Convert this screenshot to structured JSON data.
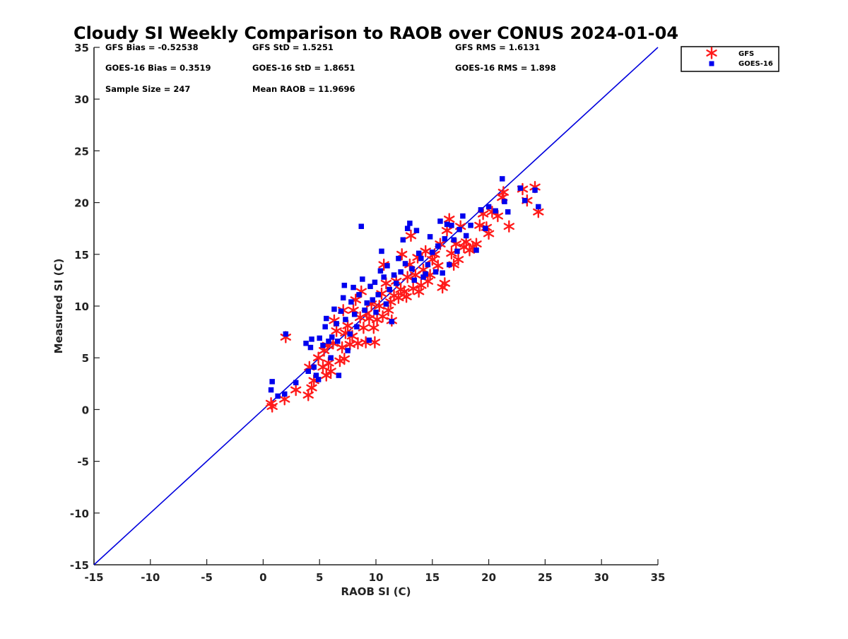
{
  "chart_data": {
    "type": "scatter",
    "title": "Cloudy SI Weekly Comparison to RAOB over CONUS 2024-01-04",
    "xlabel": "RAOB SI (C)",
    "ylabel": "Measured SI (C)",
    "xlim": [
      -15,
      35
    ],
    "ylim": [
      -15,
      35
    ],
    "xticks": [
      "-15",
      "-10",
      "-5",
      "0",
      "5",
      "10",
      "15",
      "20",
      "25",
      "30",
      "35"
    ],
    "yticks": [
      "-15",
      "-10",
      "-5",
      "0",
      "5",
      "10",
      "15",
      "20",
      "25",
      "30",
      "35"
    ],
    "grid": false,
    "legend_position": "outside-top-right",
    "stats": [
      "GFS Bias = -0.52538",
      "GFS StD = 1.5251",
      "GFS RMS = 1.6131",
      "GOES-16 Bias = 0.3519",
      "GOES-16 StD = 1.8651",
      "GOES-16 RMS = 1.898",
      "Sample Size = 247",
      "Mean RAOB = 11.9696"
    ],
    "reference_line": {
      "x": [
        -15,
        35
      ],
      "y": [
        -15,
        35
      ],
      "color": "#0000dd"
    },
    "series": [
      {
        "name": "GFS",
        "marker": "asterisk",
        "color": "#ff1a1a",
        "points": [
          [
            0.7,
            0.6
          ],
          [
            0.8,
            0.3
          ],
          [
            1.9,
            1.0
          ],
          [
            2.0,
            7.0
          ],
          [
            2.9,
            1.9
          ],
          [
            4.0,
            1.4
          ],
          [
            4.1,
            4.1
          ],
          [
            4.3,
            2.1
          ],
          [
            4.5,
            2.8
          ],
          [
            4.9,
            5.0
          ],
          [
            5.3,
            4.1
          ],
          [
            5.4,
            5.7
          ],
          [
            5.6,
            3.3
          ],
          [
            5.7,
            6.2
          ],
          [
            5.8,
            4.5
          ],
          [
            6.0,
            3.7
          ],
          [
            6.2,
            6.4
          ],
          [
            6.3,
            8.6
          ],
          [
            6.5,
            7.6
          ],
          [
            6.8,
            4.7
          ],
          [
            7.0,
            6.0
          ],
          [
            7.1,
            9.6
          ],
          [
            7.2,
            4.9
          ],
          [
            7.3,
            7.4
          ],
          [
            7.5,
            8.1
          ],
          [
            7.7,
            6.3
          ],
          [
            7.9,
            7.1
          ],
          [
            8.0,
            9.6
          ],
          [
            8.2,
            10.6
          ],
          [
            8.4,
            6.4
          ],
          [
            8.6,
            8.9
          ],
          [
            8.7,
            11.4
          ],
          [
            8.9,
            7.9
          ],
          [
            9.1,
            6.5
          ],
          [
            9.2,
            9.3
          ],
          [
            9.4,
            8.8
          ],
          [
            9.6,
            10.2
          ],
          [
            9.8,
            7.9
          ],
          [
            9.9,
            6.5
          ],
          [
            10.1,
            8.7
          ],
          [
            10.3,
            10.0
          ],
          [
            10.5,
            11.2
          ],
          [
            10.6,
            9.0
          ],
          [
            10.7,
            14.0
          ],
          [
            10.9,
            12.2
          ],
          [
            11.1,
            9.6
          ],
          [
            11.3,
            10.4
          ],
          [
            11.4,
            8.6
          ],
          [
            11.6,
            11.0
          ],
          [
            11.8,
            12.4
          ],
          [
            12.0,
            10.8
          ],
          [
            12.2,
            11.6
          ],
          [
            12.3,
            15.0
          ],
          [
            12.5,
            11.4
          ],
          [
            12.7,
            10.9
          ],
          [
            12.8,
            12.8
          ],
          [
            13.0,
            14.0
          ],
          [
            13.1,
            16.8
          ],
          [
            13.3,
            11.7
          ],
          [
            13.5,
            13.0
          ],
          [
            13.7,
            14.7
          ],
          [
            13.8,
            11.4
          ],
          [
            14.0,
            12.0
          ],
          [
            14.2,
            13.5
          ],
          [
            14.4,
            15.3
          ],
          [
            14.6,
            12.4
          ],
          [
            14.8,
            13.0
          ],
          [
            15.0,
            14.5
          ],
          [
            15.2,
            15.0
          ],
          [
            15.5,
            13.9
          ],
          [
            15.7,
            16.0
          ],
          [
            15.9,
            11.8
          ],
          [
            16.1,
            12.2
          ],
          [
            16.3,
            17.3
          ],
          [
            16.5,
            18.4
          ],
          [
            16.7,
            15.1
          ],
          [
            16.9,
            14.0
          ],
          [
            17.1,
            16.0
          ],
          [
            17.3,
            14.5
          ],
          [
            17.5,
            17.7
          ],
          [
            17.8,
            15.7
          ],
          [
            18.0,
            16.2
          ],
          [
            18.3,
            15.4
          ],
          [
            18.6,
            15.7
          ],
          [
            18.9,
            16.0
          ],
          [
            19.2,
            17.8
          ],
          [
            19.5,
            18.9
          ],
          [
            19.8,
            17.6
          ],
          [
            20.0,
            17.0
          ],
          [
            20.3,
            19.1
          ],
          [
            20.8,
            18.7
          ],
          [
            21.2,
            20.5
          ],
          [
            21.3,
            21.0
          ],
          [
            21.8,
            17.7
          ],
          [
            23.0,
            21.3
          ],
          [
            23.4,
            20.2
          ],
          [
            24.1,
            21.5
          ],
          [
            24.4,
            19.1
          ]
        ]
      },
      {
        "name": "GOES-16",
        "marker": "square",
        "color": "#0000ee",
        "points": [
          [
            0.7,
            1.9
          ],
          [
            0.8,
            2.7
          ],
          [
            1.3,
            1.3
          ],
          [
            1.9,
            1.5
          ],
          [
            2.0,
            7.3
          ],
          [
            2.9,
            2.6
          ],
          [
            3.8,
            6.4
          ],
          [
            4.0,
            3.7
          ],
          [
            4.2,
            6.0
          ],
          [
            4.3,
            6.8
          ],
          [
            4.5,
            4.1
          ],
          [
            4.7,
            3.3
          ],
          [
            4.9,
            2.9
          ],
          [
            5.0,
            6.9
          ],
          [
            5.3,
            6.2
          ],
          [
            5.5,
            8.0
          ],
          [
            5.6,
            8.8
          ],
          [
            5.8,
            6.6
          ],
          [
            6.0,
            5.0
          ],
          [
            6.1,
            7.0
          ],
          [
            6.3,
            9.7
          ],
          [
            6.5,
            8.3
          ],
          [
            6.6,
            6.6
          ],
          [
            6.7,
            3.3
          ],
          [
            6.9,
            9.5
          ],
          [
            7.1,
            10.8
          ],
          [
            7.2,
            12.0
          ],
          [
            7.3,
            8.7
          ],
          [
            7.5,
            5.7
          ],
          [
            7.7,
            7.3
          ],
          [
            7.8,
            10.4
          ],
          [
            8.0,
            11.8
          ],
          [
            8.1,
            9.2
          ],
          [
            8.3,
            8.0
          ],
          [
            8.5,
            11.1
          ],
          [
            8.7,
            17.7
          ],
          [
            8.8,
            12.6
          ],
          [
            9.0,
            9.6
          ],
          [
            9.2,
            10.3
          ],
          [
            9.4,
            6.7
          ],
          [
            9.5,
            11.9
          ],
          [
            9.7,
            10.6
          ],
          [
            9.9,
            12.3
          ],
          [
            10.0,
            9.4
          ],
          [
            10.2,
            11.1
          ],
          [
            10.4,
            13.4
          ],
          [
            10.5,
            15.3
          ],
          [
            10.7,
            12.8
          ],
          [
            10.9,
            10.2
          ],
          [
            11.0,
            13.9
          ],
          [
            11.2,
            11.6
          ],
          [
            11.4,
            8.5
          ],
          [
            11.6,
            13.0
          ],
          [
            11.8,
            12.2
          ],
          [
            12.0,
            14.6
          ],
          [
            12.2,
            13.3
          ],
          [
            12.4,
            16.4
          ],
          [
            12.6,
            14.1
          ],
          [
            12.8,
            17.5
          ],
          [
            13.0,
            18.0
          ],
          [
            13.2,
            13.6
          ],
          [
            13.4,
            12.5
          ],
          [
            13.6,
            17.3
          ],
          [
            13.8,
            15.1
          ],
          [
            14.0,
            14.6
          ],
          [
            14.2,
            12.8
          ],
          [
            14.4,
            13.1
          ],
          [
            14.6,
            14.0
          ],
          [
            14.8,
            16.7
          ],
          [
            15.0,
            15.2
          ],
          [
            15.3,
            13.3
          ],
          [
            15.5,
            15.8
          ],
          [
            15.7,
            18.2
          ],
          [
            15.9,
            13.2
          ],
          [
            16.1,
            16.5
          ],
          [
            16.3,
            17.9
          ],
          [
            16.5,
            14.0
          ],
          [
            16.7,
            17.8
          ],
          [
            16.9,
            16.4
          ],
          [
            17.2,
            15.3
          ],
          [
            17.4,
            17.4
          ],
          [
            17.7,
            18.7
          ],
          [
            18.0,
            16.8
          ],
          [
            18.4,
            17.8
          ],
          [
            18.9,
            15.4
          ],
          [
            19.3,
            19.3
          ],
          [
            19.7,
            17.5
          ],
          [
            20.0,
            19.6
          ],
          [
            20.6,
            19.2
          ],
          [
            21.2,
            22.3
          ],
          [
            21.4,
            20.1
          ],
          [
            21.7,
            19.1
          ],
          [
            22.8,
            21.4
          ],
          [
            23.2,
            20.2
          ],
          [
            24.1,
            21.2
          ],
          [
            24.4,
            19.6
          ]
        ]
      }
    ]
  }
}
